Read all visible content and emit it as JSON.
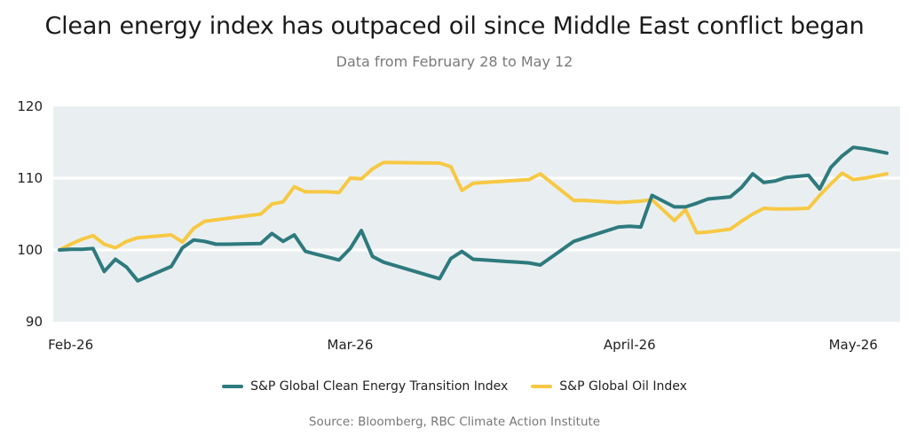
{
  "title": "Clean energy index has outpaced oil since Middle East conflict began",
  "subtitle": "Data from February 28 to May 12",
  "source": "Source: Bloomberg, RBC Climate Action Institute",
  "colors": {
    "clean": "#2e7a7e",
    "oil": "#f7c843",
    "plot_bg": "#e9eff1",
    "grid": "#ffffff"
  },
  "chart_data": {
    "type": "line",
    "title": "Clean energy index has outpaced oil since Middle East conflict began",
    "subtitle": "Data from February 28 to May 12",
    "ylim": [
      90,
      120
    ],
    "yticks": [
      90,
      100,
      110,
      120
    ],
    "xlim": [
      0,
      74
    ],
    "xticks": [
      {
        "label": "Feb-26",
        "x": 1
      },
      {
        "label": "Mar-26",
        "x": 26
      },
      {
        "label": "April-26",
        "x": 51
      },
      {
        "label": "May-26",
        "x": 71
      }
    ],
    "grid": true,
    "legend_position": "bottom",
    "series": [
      {
        "name": "S&P Global Clean Energy Transition Index",
        "color": "#2e7a7e",
        "x": [
          0,
          1,
          2,
          3,
          4,
          5,
          6,
          7,
          10,
          11,
          12,
          13,
          14,
          15,
          18,
          19,
          20,
          21,
          22,
          23,
          24,
          25,
          26,
          27,
          28,
          29,
          34,
          35,
          36,
          37,
          38,
          39,
          40,
          41,
          42,
          43,
          46,
          47,
          50,
          51,
          52,
          53,
          55,
          56,
          57,
          58,
          60,
          61,
          62,
          63,
          64,
          65,
          67,
          68,
          69,
          70,
          71,
          72,
          73,
          74
        ],
        "y": [
          100.0,
          100.1,
          100.1,
          100.2,
          97.0,
          98.7,
          97.6,
          95.7,
          97.7,
          100.3,
          101.4,
          101.2,
          100.8,
          100.8,
          100.9,
          102.3,
          101.2,
          102.1,
          99.8,
          99.4,
          99.0,
          98.6,
          100.2,
          102.7,
          99.1,
          98.3,
          96.0,
          98.8,
          99.8,
          98.7,
          98.6,
          98.5,
          98.4,
          98.3,
          98.2,
          97.9,
          101.2,
          101.7,
          103.2,
          103.3,
          103.2,
          107.6,
          106.0,
          106.0,
          106.5,
          107.1,
          107.4,
          108.7,
          110.6,
          109.4,
          109.6,
          110.1,
          110.4,
          108.5,
          111.5,
          113.1,
          114.3,
          114.1,
          113.8,
          113.5
        ]
      },
      {
        "name": "S&P Global Oil Index",
        "color": "#f7c843",
        "x": [
          0,
          1,
          2,
          3,
          4,
          5,
          6,
          7,
          10,
          11,
          12,
          13,
          14,
          15,
          18,
          19,
          20,
          21,
          22,
          23,
          24,
          25,
          26,
          27,
          28,
          29,
          34,
          35,
          36,
          37,
          38,
          39,
          40,
          41,
          42,
          43,
          46,
          47,
          50,
          51,
          52,
          53,
          55,
          56,
          57,
          58,
          60,
          61,
          62,
          63,
          64,
          65,
          67,
          68,
          69,
          70,
          71,
          72,
          73,
          74
        ],
        "y": [
          100.0,
          100.8,
          101.5,
          102.0,
          100.8,
          100.3,
          101.2,
          101.7,
          102.1,
          101.1,
          103.0,
          104.0,
          104.2,
          104.4,
          105.0,
          106.4,
          106.7,
          108.8,
          108.1,
          108.1,
          108.1,
          108.0,
          110.0,
          109.9,
          111.3,
          112.2,
          112.1,
          111.6,
          108.3,
          109.3,
          109.4,
          109.5,
          109.6,
          109.7,
          109.8,
          110.6,
          106.9,
          106.9,
          106.6,
          106.7,
          106.8,
          107.0,
          104.1,
          105.6,
          102.4,
          102.5,
          102.9,
          104.0,
          105.0,
          105.8,
          105.7,
          105.7,
          105.8,
          107.6,
          109.2,
          110.7,
          109.8,
          110.0,
          110.3,
          110.6
        ]
      }
    ]
  }
}
